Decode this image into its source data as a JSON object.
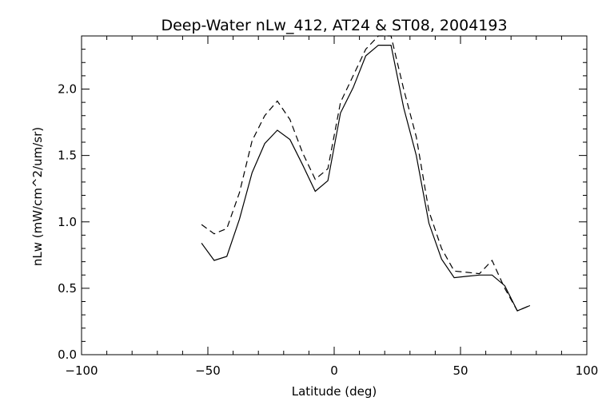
{
  "chart_data": {
    "type": "line",
    "title": "Deep-Water nLw_412, AT24 & ST08, 2004193",
    "xlabel": "Latitude (deg)",
    "ylabel": "nLw (mW/cm^2/um/sr)",
    "xlim": [
      -100,
      100
    ],
    "ylim": [
      0.0,
      2.4
    ],
    "xticks": [
      -100,
      -50,
      0,
      50,
      100
    ],
    "xtick_labels": [
      "−100",
      "−50",
      "0",
      "50",
      "100"
    ],
    "yticks": [
      0.0,
      0.5,
      1.0,
      1.5,
      2.0
    ],
    "ytick_labels": [
      "0.0",
      "0.5",
      "1.0",
      "1.5",
      "2.0"
    ],
    "grid": false,
    "series": [
      {
        "name": "solid",
        "style": "solid",
        "x": [
          -52.5,
          -47.5,
          -42.5,
          -37.5,
          -32.5,
          -27.5,
          -22.5,
          -17.5,
          -12.5,
          -7.5,
          -2.5,
          2.5,
          7.5,
          12.5,
          17.5,
          22.5,
          27.5,
          32.5,
          37.5,
          42.5,
          47.5,
          52.5,
          57.5,
          62.5,
          67.5,
          72.5,
          77.5
        ],
        "y": [
          0.84,
          0.71,
          0.74,
          1.02,
          1.37,
          1.59,
          1.69,
          1.62,
          1.43,
          1.23,
          1.31,
          1.82,
          2.01,
          2.25,
          2.33,
          2.33,
          1.86,
          1.5,
          0.99,
          0.72,
          0.58,
          0.59,
          0.6,
          0.6,
          0.52,
          0.33,
          0.37
        ]
      },
      {
        "name": "dashed",
        "style": "dashed",
        "x": [
          -52.5,
          -47.5,
          -42.5,
          -37.5,
          -32.5,
          -27.5,
          -22.5,
          -17.5,
          -12.5,
          -7.5,
          -2.5,
          2.5,
          7.5,
          12.5,
          17.5,
          22.5,
          27.5,
          32.5,
          37.5,
          42.5,
          47.5,
          52.5,
          57.5,
          62.5,
          67.5,
          72.5,
          77.5
        ],
        "y": [
          0.98,
          0.91,
          0.95,
          1.22,
          1.61,
          1.8,
          1.91,
          1.77,
          1.52,
          1.32,
          1.4,
          1.9,
          2.1,
          2.3,
          2.4,
          2.4,
          2.0,
          1.64,
          1.08,
          0.8,
          0.63,
          0.62,
          0.61,
          0.71,
          0.5,
          0.33,
          0.37
        ]
      }
    ]
  }
}
